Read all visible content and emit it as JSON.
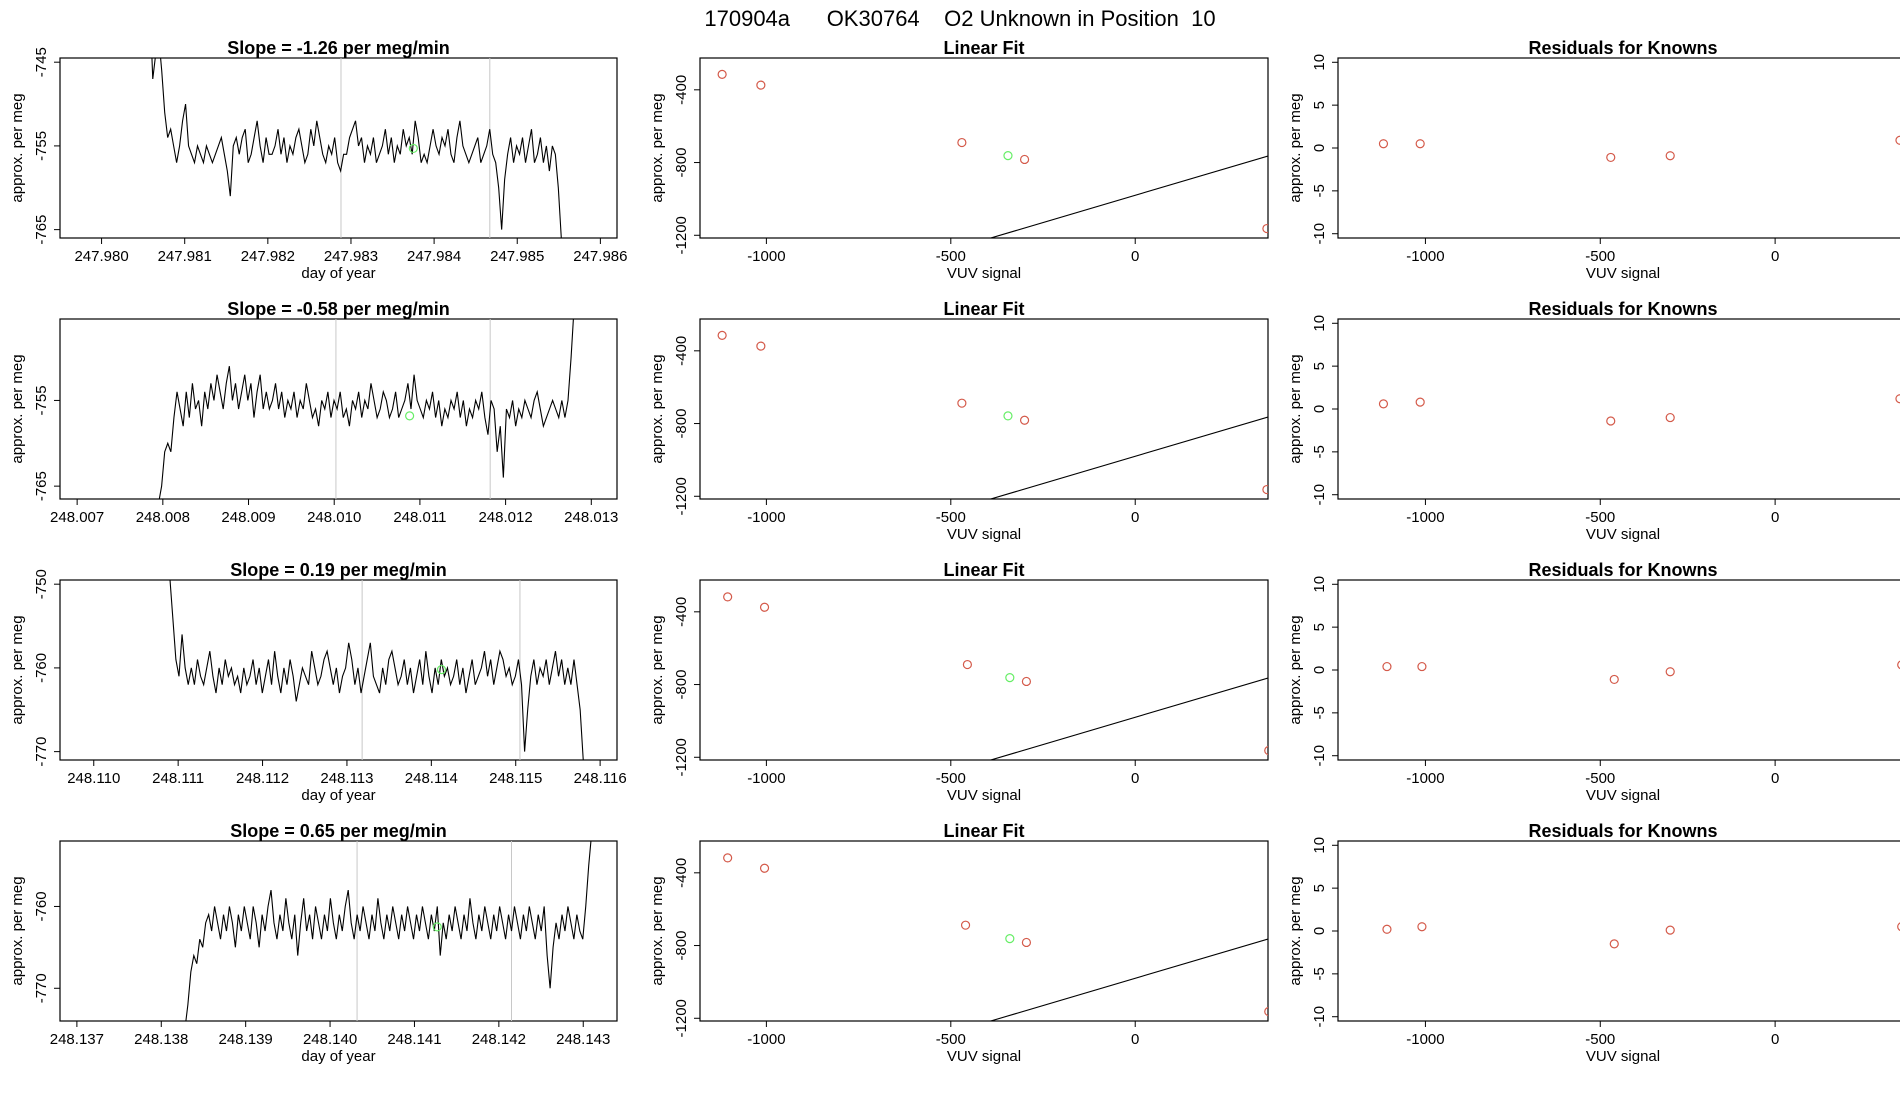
{
  "page_title": "170904a      OK30764    O2 Unknown in Position  10",
  "chart_data": [
    {
      "row": 1,
      "type": "line",
      "title": "Slope =  -1.26  per meg/min",
      "xlabel": "day of year",
      "ylabel": "approx. per meg",
      "xlim": [
        247.9795,
        247.9862
      ],
      "ylim": [
        -766,
        -744.5
      ],
      "xticks": [
        "247.980",
        "247.981",
        "247.982",
        "247.983",
        "247.984",
        "247.985",
        "247.986"
      ],
      "yticks": [
        -745,
        -755,
        -765
      ],
      "vlines": [
        247.98288,
        247.98467
      ],
      "x_start": 247.98058,
      "x_end": 247.98553,
      "y": [
        -738,
        -747,
        -744,
        -742,
        -746,
        -751,
        -754,
        -753,
        -755,
        -757,
        -755,
        -752,
        -750,
        -755,
        -756,
        -757,
        -755,
        -756,
        -757,
        -755,
        -756,
        -757,
        -756,
        -755,
        -754,
        -756,
        -758,
        -761,
        -755,
        -754,
        -756,
        -754,
        -753,
        -757,
        -756,
        -754,
        -752,
        -755,
        -757,
        -754,
        -756,
        -756,
        -755,
        -753,
        -756,
        -754,
        -757,
        -755,
        -756,
        -754,
        -753,
        -755,
        -757,
        -756,
        -753,
        -755,
        -752,
        -754,
        -756,
        -757,
        -755,
        -756,
        -754,
        -757,
        -758,
        -756,
        -756,
        -754,
        -753,
        -752,
        -755,
        -754,
        -757,
        -755,
        -756,
        -754,
        -757,
        -756,
        -755,
        -753,
        -756,
        -754,
        -757,
        -755,
        -756,
        -753,
        -755,
        -754,
        -756,
        -752,
        -754,
        -757,
        -756,
        -757,
        -755,
        -753,
        -755,
        -756,
        -754,
        -755,
        -753,
        -756,
        -757,
        -754,
        -752,
        -755,
        -756,
        -757,
        -756,
        -755,
        -754,
        -757,
        -756,
        -755,
        -753,
        -756,
        -757,
        -760,
        -765,
        -759,
        -756,
        -754,
        -757,
        -755,
        -756,
        -754,
        -757,
        -755,
        -753,
        -757,
        -756,
        -754,
        -757,
        -755,
        -758,
        -755,
        -756,
        -760,
        -766
      ],
      "green_point": [
        247.98375,
        -755.3
      ]
    },
    {
      "row": 1,
      "type": "scatter",
      "title": "Linear Fit",
      "xlabel": "VUV signal",
      "ylabel": "approx. per meg",
      "xlim": [
        -1180,
        360
      ],
      "ylim": [
        -1215,
        -225
      ],
      "xticks": [
        -1000,
        -500,
        0
      ],
      "yticks": [
        -400,
        -800,
        -1200
      ],
      "fit": {
        "slope": 0.6,
        "intercept": -980
      },
      "points": [
        [
          -1120,
          -315
        ],
        [
          -1015,
          -374
        ],
        [
          -470,
          -690
        ],
        [
          -300,
          -783
        ],
        [
          357,
          -1163
        ]
      ],
      "green_point": [
        -345,
        -762
      ]
    },
    {
      "row": 1,
      "type": "scatter",
      "title": "Residuals for Knowns",
      "xlabel": "VUV signal",
      "ylabel": "approx. per meg",
      "xlim": [
        -1250,
        380
      ],
      "ylim": [
        -10.5,
        10.5
      ],
      "xticks": [
        -1000,
        -500,
        0
      ],
      "yticks": [
        10,
        5,
        0,
        -5,
        -10
      ],
      "points": [
        [
          -1120,
          0.5
        ],
        [
          -1015,
          0.5
        ],
        [
          -470,
          -1.1
        ],
        [
          -300,
          -0.9
        ],
        [
          357,
          0.9
        ]
      ]
    },
    {
      "row": 2,
      "type": "line",
      "title": "Slope =  -0.58  per meg/min",
      "xlabel": "",
      "ylabel": "approx. per meg",
      "xlim": [
        248.0068,
        248.0133
      ],
      "ylim": [
        -766.5,
        -745.5
      ],
      "xticks": [
        "248.007",
        "248.008",
        "248.009",
        "248.010",
        "248.011",
        "248.012",
        "248.013"
      ],
      "yticks": [
        -755,
        -765
      ],
      "vlines": [
        248.01002,
        248.01182
      ],
      "x_start": 248.00795,
      "x_end": 248.0128,
      "y": [
        -767,
        -765,
        -761,
        -760,
        -761,
        -757,
        -754,
        -756,
        -758,
        -754,
        -757,
        -753,
        -756,
        -755,
        -758,
        -754,
        -756,
        -753,
        -755,
        -752,
        -754,
        -756,
        -753,
        -751,
        -755,
        -753,
        -756,
        -754,
        -752,
        -755,
        -753,
        -757,
        -754,
        -752,
        -756,
        -754,
        -756,
        -755,
        -753,
        -756,
        -754,
        -757,
        -755,
        -756,
        -754,
        -757,
        -755,
        -756,
        -753,
        -755,
        -757,
        -756,
        -758,
        -755,
        -756,
        -754,
        -757,
        -755,
        -756,
        -754,
        -757,
        -756,
        -758,
        -755,
        -756,
        -754,
        -757,
        -755,
        -756,
        -753,
        -755,
        -757,
        -756,
        -754,
        -755,
        -757,
        -756,
        -754,
        -757,
        -756,
        -755,
        -753,
        -756,
        -752,
        -755,
        -756,
        -757,
        -755,
        -756,
        -754,
        -757,
        -755,
        -758,
        -756,
        -757,
        -755,
        -756,
        -754,
        -757,
        -755,
        -758,
        -756,
        -757,
        -755,
        -756,
        -754,
        -757,
        -759,
        -755,
        -756,
        -761,
        -758,
        -764,
        -756,
        -757,
        -755,
        -758,
        -756,
        -757,
        -755,
        -756,
        -757,
        -755,
        -754,
        -756,
        -758,
        -757,
        -756,
        -755,
        -756,
        -757,
        -755,
        -757,
        -755,
        -750,
        -744
      ],
      "green_point": [
        248.01088,
        -756.8
      ]
    },
    {
      "row": 2,
      "type": "scatter",
      "title": "Linear Fit",
      "xlabel": "VUV signal",
      "ylabel": "approx. per meg",
      "xlim": [
        -1180,
        360
      ],
      "ylim": [
        -1215,
        -225
      ],
      "xticks": [
        -1000,
        -500,
        0
      ],
      "yticks": [
        -400,
        -800,
        -1200
      ],
      "fit": {
        "slope": 0.6,
        "intercept": -980
      },
      "points": [
        [
          -1120,
          -315
        ],
        [
          -1015,
          -374
        ],
        [
          -470,
          -688
        ],
        [
          -300,
          -782
        ],
        [
          357,
          -1163
        ]
      ],
      "green_point": [
        -345,
        -758
      ]
    },
    {
      "row": 2,
      "type": "scatter",
      "title": "Residuals for Knowns",
      "xlabel": "VUV signal",
      "ylabel": "approx. per meg",
      "xlim": [
        -1250,
        380
      ],
      "ylim": [
        -10.5,
        10.5
      ],
      "xticks": [
        -1000,
        -500,
        0
      ],
      "yticks": [
        10,
        5,
        0,
        -5,
        -10
      ],
      "points": [
        [
          -1120,
          0.6
        ],
        [
          -1015,
          0.8
        ],
        [
          -470,
          -1.4
        ],
        [
          -300,
          -1.0
        ],
        [
          357,
          1.2
        ]
      ]
    },
    {
      "row": 3,
      "type": "line",
      "title": "Slope =  0.19  per meg/min",
      "xlabel": "day of year",
      "ylabel": "approx. per meg",
      "xlim": [
        248.1096,
        248.1162
      ],
      "ylim": [
        -771,
        -749.5
      ],
      "xticks": [
        "248.110",
        "248.111",
        "248.112",
        "248.113",
        "248.114",
        "248.115",
        "248.116"
      ],
      "yticks": [
        -750,
        -760,
        -770
      ],
      "vlines": [
        248.11318,
        248.11505
      ],
      "x_start": 248.1109,
      "x_end": 248.1158,
      "y": [
        -749,
        -754,
        -759,
        -761,
        -756,
        -760,
        -762,
        -760,
        -762,
        -759,
        -761,
        -762,
        -760,
        -758,
        -761,
        -763,
        -760,
        -762,
        -759,
        -761,
        -760,
        -762,
        -761,
        -763,
        -760,
        -762,
        -761,
        -759,
        -762,
        -760,
        -763,
        -761,
        -759,
        -762,
        -758,
        -761,
        -763,
        -760,
        -762,
        -759,
        -761,
        -764,
        -762,
        -760,
        -761,
        -762,
        -758,
        -760,
        -762,
        -761,
        -759,
        -758,
        -760,
        -762,
        -760,
        -763,
        -761,
        -760,
        -757,
        -759,
        -762,
        -760,
        -763,
        -761,
        -759,
        -757,
        -761,
        -762,
        -763,
        -760,
        -762,
        -759,
        -758,
        -760,
        -762,
        -761,
        -759,
        -762,
        -760,
        -763,
        -761,
        -759,
        -762,
        -758,
        -761,
        -763,
        -760,
        -762,
        -759,
        -761,
        -760,
        -762,
        -761,
        -759,
        -762,
        -760,
        -763,
        -761,
        -759,
        -762,
        -761,
        -760,
        -758,
        -761,
        -759,
        -762,
        -760,
        -758,
        -759,
        -761,
        -760,
        -762,
        -761,
        -759,
        -762,
        -770,
        -765,
        -761,
        -759,
        -762,
        -760,
        -761,
        -759,
        -762,
        -760,
        -758,
        -761,
        -759,
        -762,
        -760,
        -762,
        -759,
        -762,
        -765,
        -771
      ],
      "green_point": [
        248.11412,
        -760.2
      ]
    },
    {
      "row": 3,
      "type": "scatter",
      "title": "Linear Fit",
      "xlabel": "VUV signal",
      "ylabel": "approx. per meg",
      "xlim": [
        -1180,
        360
      ],
      "ylim": [
        -1215,
        -225
      ],
      "xticks": [
        -1000,
        -500,
        0
      ],
      "yticks": [
        -400,
        -800,
        -1200
      ],
      "fit": {
        "slope": 0.6,
        "intercept": -980
      },
      "points": [
        [
          -1105,
          -318
        ],
        [
          -1005,
          -375
        ],
        [
          -455,
          -690
        ],
        [
          -295,
          -783
        ],
        [
          362,
          -1163
        ]
      ],
      "green_point": [
        -340,
        -762
      ]
    },
    {
      "row": 3,
      "type": "scatter",
      "title": "Residuals for Knowns",
      "xlabel": "VUV signal",
      "ylabel": "approx. per meg",
      "xlim": [
        -1250,
        380
      ],
      "ylim": [
        -10.5,
        10.5
      ],
      "xticks": [
        -1000,
        -500,
        0
      ],
      "yticks": [
        10,
        5,
        0,
        -5,
        -10
      ],
      "points": [
        [
          -1110,
          0.4
        ],
        [
          -1010,
          0.4
        ],
        [
          -460,
          -1.1
        ],
        [
          -300,
          -0.2
        ],
        [
          362,
          0.6
        ]
      ]
    },
    {
      "row": 4,
      "type": "line",
      "title": "Slope =  0.65  per meg/min",
      "xlabel": "day of year",
      "ylabel": "approx. per meg",
      "xlim": [
        248.1368,
        248.1434
      ],
      "ylim": [
        -774,
        -752
      ],
      "xticks": [
        "248.137",
        "248.138",
        "248.139",
        "248.140",
        "248.141",
        "248.142",
        "248.143"
      ],
      "yticks": [
        -760,
        -770
      ],
      "vlines": [
        248.14032,
        248.14215
      ],
      "x_start": 248.13828,
      "x_end": 248.1431,
      "y": [
        -775,
        -772,
        -768,
        -766,
        -767,
        -764,
        -765,
        -762,
        -761,
        -763,
        -760,
        -762,
        -764,
        -761,
        -763,
        -760,
        -762,
        -765,
        -761,
        -763,
        -760,
        -762,
        -764,
        -760,
        -762,
        -765,
        -761,
        -763,
        -760,
        -758,
        -762,
        -764,
        -761,
        -763,
        -759,
        -762,
        -764,
        -761,
        -766,
        -762,
        -759,
        -763,
        -761,
        -764,
        -760,
        -762,
        -764,
        -761,
        -763,
        -759,
        -762,
        -764,
        -761,
        -763,
        -760,
        -758,
        -762,
        -764,
        -761,
        -763,
        -760,
        -762,
        -764,
        -761,
        -763,
        -759,
        -762,
        -764,
        -761,
        -763,
        -760,
        -762,
        -764,
        -761,
        -763,
        -760,
        -762,
        -764,
        -761,
        -763,
        -760,
        -762,
        -764,
        -761,
        -763,
        -760,
        -766,
        -762,
        -764,
        -761,
        -763,
        -760,
        -762,
        -764,
        -761,
        -763,
        -759,
        -762,
        -764,
        -761,
        -763,
        -760,
        -762,
        -764,
        -761,
        -763,
        -760,
        -762,
        -764,
        -761,
        -763,
        -760,
        -762,
        -764,
        -761,
        -763,
        -760,
        -762,
        -764,
        -761,
        -763,
        -760,
        -766,
        -770,
        -765,
        -762,
        -764,
        -761,
        -763,
        -760,
        -762,
        -764,
        -761,
        -763,
        -764,
        -760,
        -755,
        -751
      ],
      "green_point": [
        248.14127,
        -762.5
      ]
    },
    {
      "row": 4,
      "type": "scatter",
      "title": "Linear Fit",
      "xlabel": "VUV signal",
      "ylabel": "approx. per meg",
      "xlim": [
        -1180,
        360
      ],
      "ylim": [
        -1215,
        -225
      ],
      "xticks": [
        -1000,
        -500,
        0
      ],
      "yticks": [
        -400,
        -800,
        -1200
      ],
      "fit": {
        "slope": 0.6,
        "intercept": -980
      },
      "points": [
        [
          -1105,
          -318
        ],
        [
          -1005,
          -375
        ],
        [
          -460,
          -688
        ],
        [
          -295,
          -783
        ],
        [
          362,
          -1163
        ]
      ],
      "green_point": [
        -340,
        -762
      ]
    },
    {
      "row": 4,
      "type": "scatter",
      "title": "Residuals for Knowns",
      "xlabel": "VUV signal",
      "ylabel": "approx. per meg",
      "xlim": [
        -1250,
        380
      ],
      "ylim": [
        -10.5,
        10.5
      ],
      "xticks": [
        -1000,
        -500,
        0
      ],
      "yticks": [
        10,
        5,
        0,
        -5,
        -10
      ],
      "points": [
        [
          -1110,
          0.2
        ],
        [
          -1010,
          0.5
        ],
        [
          -460,
          -1.5
        ],
        [
          -300,
          0.1
        ],
        [
          362,
          0.5
        ]
      ]
    }
  ],
  "colors": {
    "line": "#000000",
    "known_points": "#d45a4a",
    "unknown_point": "#66ee66",
    "vline": "#c8c8c8",
    "axis": "#000000"
  }
}
